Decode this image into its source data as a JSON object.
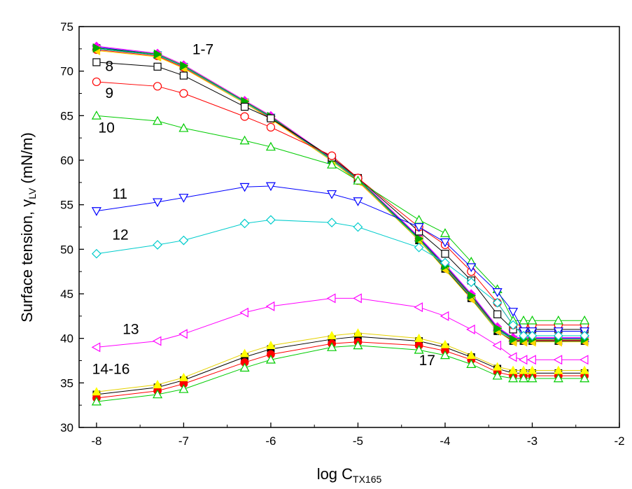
{
  "chart_data": {
    "type": "line",
    "xlabel": "log C",
    "xlabel_sub": "TX165",
    "ylabel": "Surface tension, γ",
    "ylabel_sub": "LV",
    "ylabel_unit": "(mN/m)",
    "xlim": [
      -8.2,
      -2.0
    ],
    "ylim": [
      30,
      75
    ],
    "x_ticks": [
      "-8",
      "-7",
      "-6",
      "-5",
      "-4",
      "-3",
      "-2"
    ],
    "y_ticks": [
      "30",
      "35",
      "40",
      "45",
      "50",
      "55",
      "60",
      "65",
      "70",
      "75"
    ],
    "grid": false,
    "legend": "none",
    "x": [
      -8.0,
      -7.3,
      -7.0,
      -6.3,
      -6.0,
      -5.3,
      -5.0,
      -4.3,
      -4.0,
      -3.7,
      -3.4,
      -3.22,
      -3.1,
      -3.0,
      -2.7,
      -2.4
    ],
    "series": [
      {
        "marker": "filled-square",
        "color": "#000000",
        "values": [
          72.6,
          71.8,
          70.5,
          66.5,
          64.8,
          60.0,
          57.8,
          51.0,
          47.8,
          44.5,
          40.8,
          39.7,
          39.7,
          39.7,
          39.7,
          39.7
        ]
      },
      {
        "marker": "filled-circle",
        "color": "#ff0000",
        "values": [
          72.4,
          71.7,
          70.4,
          66.5,
          64.7,
          60.0,
          57.7,
          51.2,
          48.0,
          44.7,
          41.0,
          39.8,
          39.8,
          39.8,
          39.8,
          39.8
        ]
      },
      {
        "marker": "filled-triangle-up",
        "color": "#0000ff",
        "values": [
          72.7,
          71.9,
          70.6,
          66.6,
          64.9,
          60.1,
          57.9,
          51.3,
          48.2,
          44.9,
          41.2,
          40.0,
          40.0,
          40.0,
          40.0,
          40.0
        ]
      },
      {
        "marker": "filled-triangle-down",
        "color": "#00cccc",
        "values": [
          72.5,
          71.8,
          70.5,
          66.5,
          64.8,
          60.0,
          57.8,
          51.1,
          47.9,
          44.6,
          40.9,
          39.9,
          39.9,
          39.9,
          39.9,
          39.9
        ]
      },
      {
        "marker": "filled-diamond",
        "color": "#ff00ff",
        "values": [
          72.8,
          72.0,
          70.7,
          66.7,
          65.0,
          60.2,
          58.0,
          51.4,
          48.3,
          45.0,
          41.3,
          40.1,
          40.1,
          40.1,
          40.1,
          40.1
        ]
      },
      {
        "marker": "filled-triangle-left",
        "color": "#ffd700",
        "values": [
          72.3,
          71.6,
          70.3,
          66.4,
          64.6,
          59.9,
          57.6,
          51.0,
          47.7,
          44.4,
          40.8,
          39.6,
          39.6,
          39.6,
          39.6,
          39.6
        ]
      },
      {
        "marker": "filled-triangle-right",
        "color": "#00aa00",
        "values": [
          72.6,
          71.9,
          70.6,
          66.6,
          64.9,
          60.1,
          57.9,
          51.2,
          48.1,
          44.8,
          41.1,
          39.9,
          39.9,
          39.9,
          39.9,
          39.9
        ]
      },
      {
        "marker": "open-square",
        "color": "#000000",
        "values": [
          71.0,
          70.5,
          69.5,
          66.0,
          64.7,
          60.3,
          58.0,
          52.0,
          49.5,
          46.5,
          42.7,
          41.0,
          41.0,
          41.0,
          41.0,
          41.0
        ]
      },
      {
        "marker": "open-circle",
        "color": "#ff0000",
        "values": [
          68.8,
          68.3,
          67.5,
          64.9,
          63.7,
          60.5,
          58.0,
          52.5,
          50.5,
          47.5,
          44.0,
          41.5,
          41.5,
          41.5,
          41.5,
          41.5
        ]
      },
      {
        "marker": "open-triangle-up",
        "color": "#00cc00",
        "values": [
          65.0,
          64.4,
          63.6,
          62.2,
          61.5,
          59.5,
          57.7,
          53.3,
          51.8,
          48.6,
          45.5,
          42.0,
          42.0,
          42.0,
          42.0,
          42.0
        ]
      },
      {
        "marker": "open-triangle-down",
        "color": "#0000ff",
        "values": [
          54.3,
          55.3,
          55.8,
          57.0,
          57.1,
          56.2,
          55.4,
          52.5,
          50.8,
          48.0,
          45.2,
          43.0,
          40.8,
          40.8,
          40.8,
          40.8
        ]
      },
      {
        "marker": "open-diamond",
        "color": "#00cccc",
        "values": [
          49.5,
          50.5,
          51.0,
          52.9,
          53.3,
          53.0,
          52.5,
          50.2,
          48.5,
          46.3,
          44.0,
          41.5,
          40.3,
          40.3,
          40.3,
          40.3
        ]
      },
      {
        "marker": "open-triangle-left",
        "color": "#ff00ff",
        "values": [
          39.0,
          39.7,
          40.5,
          42.9,
          43.6,
          44.5,
          44.5,
          43.5,
          42.5,
          41.0,
          39.2,
          37.9,
          37.6,
          37.6,
          37.6,
          37.6
        ]
      },
      {
        "marker": "filled-square",
        "color": "#000000",
        "values": [
          33.7,
          34.5,
          35.3,
          37.9,
          38.8,
          39.9,
          40.2,
          39.7,
          39.0,
          37.9,
          36.6,
          36.1,
          36.1,
          36.1,
          36.1,
          36.1
        ]
      },
      {
        "marker": "filled-circle",
        "color": "#ff0000",
        "values": [
          33.3,
          34.1,
          34.9,
          37.3,
          38.2,
          39.4,
          39.6,
          39.2,
          38.6,
          37.6,
          36.2,
          35.8,
          35.8,
          35.8,
          35.8,
          35.8
        ]
      },
      {
        "marker": "filled-triangle-up",
        "color": "#ffff00",
        "values": [
          34.0,
          34.8,
          35.6,
          38.3,
          39.2,
          40.3,
          40.6,
          40.0,
          39.3,
          38.1,
          36.8,
          36.4,
          36.4,
          36.4,
          36.4,
          36.4
        ]
      },
      {
        "marker": "open-triangle-up",
        "color": "#00cc00",
        "values": [
          32.9,
          33.7,
          34.3,
          36.7,
          37.6,
          39.0,
          39.2,
          38.7,
          38.1,
          37.1,
          35.8,
          35.5,
          35.5,
          35.5,
          35.5,
          35.5
        ]
      }
    ],
    "curve_labels": [
      {
        "text": "1-7",
        "x": -6.9,
        "y": 71.9
      },
      {
        "text": "8",
        "x": -7.9,
        "y": 70.0
      },
      {
        "text": "9",
        "x": -7.9,
        "y": 67.0
      },
      {
        "text": "10",
        "x": -7.98,
        "y": 63.1
      },
      {
        "text": "11",
        "x": -7.82,
        "y": 55.7
      },
      {
        "text": "12",
        "x": -7.82,
        "y": 51.1
      },
      {
        "text": "13",
        "x": -7.7,
        "y": 40.5
      },
      {
        "text": "14-16",
        "x": -8.05,
        "y": 36.0
      },
      {
        "text": "17",
        "x": -4.3,
        "y": 37.0
      }
    ]
  }
}
